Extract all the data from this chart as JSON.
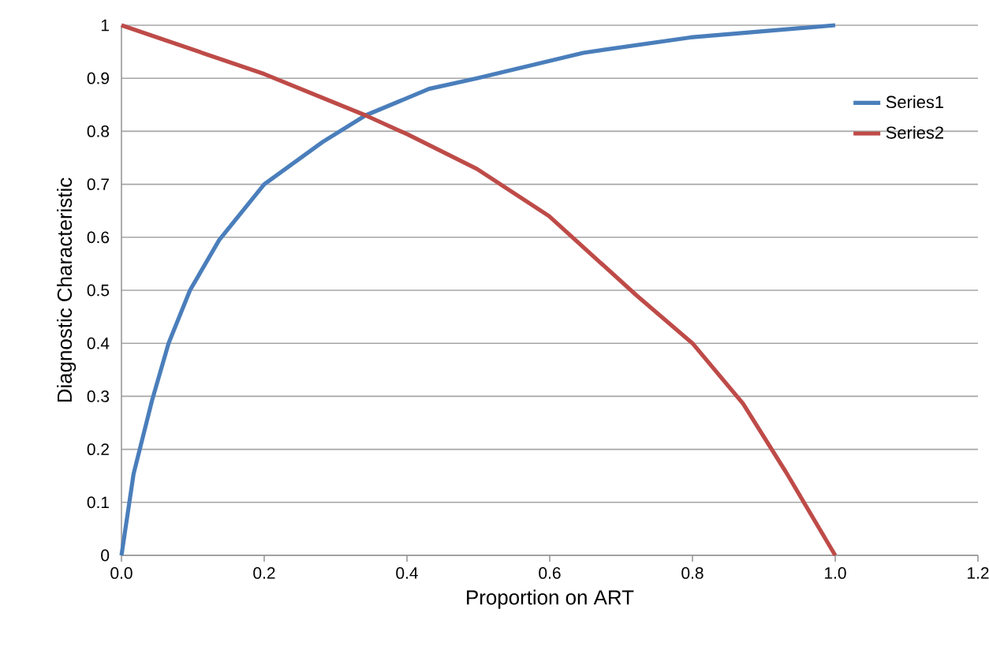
{
  "chart_data": {
    "type": "line",
    "xlabel": "Proportion on ART",
    "ylabel": "Diagnostic Characteristic",
    "xlim": [
      0,
      1.2
    ],
    "ylim": [
      0,
      1
    ],
    "xticks": [
      {
        "value": 0,
        "label": "0.0"
      },
      0.2,
      0.4,
      0.6,
      0.8,
      {
        "value": 1,
        "label": "1.0"
      },
      1.2
    ],
    "yticks": [
      0,
      0.1,
      0.2,
      0.3,
      0.4,
      0.5,
      0.6,
      0.7,
      0.8,
      0.9,
      1
    ],
    "grid": "y",
    "legend": "top right",
    "marker": "none",
    "line_style": "solid",
    "series": [
      {
        "name": "Series1",
        "color": "#4a7ebb",
        "x": [
          0,
          0.017,
          0.043,
          0.066,
          0.096,
          0.137,
          0.2,
          0.282,
          0.342,
          0.431,
          0.498,
          0.647,
          0.797,
          1
        ],
        "values": [
          0,
          0.154,
          0.293,
          0.4,
          0.5,
          0.595,
          0.7,
          0.78,
          0.83,
          0.88,
          0.9,
          0.948,
          0.977,
          1
        ]
      },
      {
        "name": "Series2",
        "color": "#be4b48",
        "x": [
          0,
          0.2,
          0.342,
          0.401,
          0.498,
          0.599,
          0.722,
          0.8,
          0.871,
          0.931,
          1
        ],
        "values": [
          1,
          0.908,
          0.83,
          0.794,
          0.729,
          0.64,
          0.49,
          0.4,
          0.286,
          0.157,
          0
        ]
      }
    ]
  }
}
